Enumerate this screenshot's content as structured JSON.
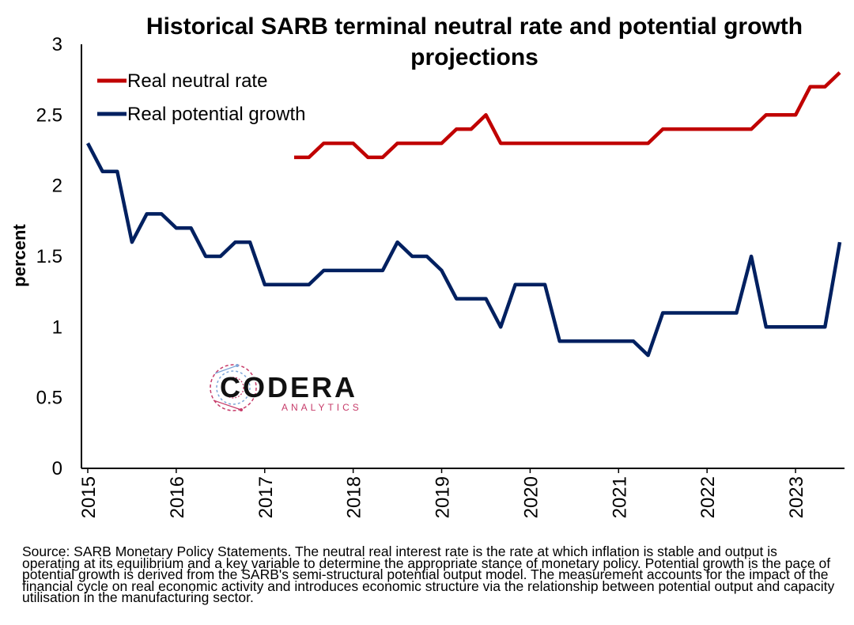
{
  "chart_data": {
    "type": "line",
    "title_line1": "Historical SARB terminal neutral rate and potential growth",
    "title_line2": "projections",
    "ylabel": "percent",
    "xlabel": "",
    "ylim": [
      0,
      3
    ],
    "yticks": [
      "0",
      "0.5",
      "1",
      "1.5",
      "2",
      "2.5",
      "3"
    ],
    "xticks": [
      "2015",
      "2016",
      "2017",
      "2018",
      "2019",
      "2020",
      "2021",
      "2022",
      "2023"
    ],
    "x_range": [
      2015.0,
      2023.5
    ],
    "grid": false,
    "legend_position": "top-left",
    "series": [
      {
        "name": "Real neutral rate",
        "color": "#c00000",
        "x": [
          2017.333,
          2017.5,
          2017.667,
          2017.833,
          2018.0,
          2018.167,
          2018.333,
          2018.5,
          2018.667,
          2018.833,
          2019.0,
          2019.167,
          2019.333,
          2019.5,
          2019.667,
          2019.833,
          2020.0,
          2020.167,
          2020.333,
          2020.5,
          2020.667,
          2020.833,
          2021.0,
          2021.167,
          2021.333,
          2021.5,
          2021.667,
          2021.833,
          2022.0,
          2022.167,
          2022.333,
          2022.5,
          2022.667,
          2022.833,
          2023.0,
          2023.167,
          2023.333,
          2023.5
        ],
        "y": [
          2.2,
          2.2,
          2.3,
          2.3,
          2.3,
          2.2,
          2.2,
          2.3,
          2.3,
          2.3,
          2.3,
          2.4,
          2.4,
          2.5,
          2.3,
          2.3,
          2.3,
          2.3,
          2.3,
          2.3,
          2.3,
          2.3,
          2.3,
          2.3,
          2.3,
          2.4,
          2.4,
          2.4,
          2.4,
          2.4,
          2.4,
          2.4,
          2.5,
          2.5,
          2.5,
          2.7,
          2.7,
          2.8
        ]
      },
      {
        "name": "Real potential growth",
        "color": "#002060",
        "x": [
          2015.0,
          2015.167,
          2015.333,
          2015.5,
          2015.667,
          2015.833,
          2016.0,
          2016.167,
          2016.333,
          2016.5,
          2016.667,
          2016.833,
          2017.0,
          2017.167,
          2017.333,
          2017.5,
          2017.667,
          2017.833,
          2018.0,
          2018.167,
          2018.333,
          2018.5,
          2018.667,
          2018.833,
          2019.0,
          2019.167,
          2019.333,
          2019.5,
          2019.667,
          2019.833,
          2020.0,
          2020.167,
          2020.333,
          2020.5,
          2020.667,
          2020.833,
          2021.0,
          2021.167,
          2021.333,
          2021.5,
          2021.667,
          2021.833,
          2022.0,
          2022.167,
          2022.333,
          2022.5,
          2022.667,
          2022.833,
          2023.0,
          2023.167,
          2023.333,
          2023.5
        ],
        "y": [
          2.3,
          2.1,
          2.1,
          1.6,
          1.8,
          1.8,
          1.7,
          1.7,
          1.5,
          1.5,
          1.6,
          1.6,
          1.3,
          1.3,
          1.3,
          1.3,
          1.4,
          1.4,
          1.4,
          1.4,
          1.4,
          1.6,
          1.5,
          1.5,
          1.4,
          1.2,
          1.2,
          1.2,
          1.0,
          1.3,
          1.3,
          1.3,
          0.9,
          0.9,
          0.9,
          0.9,
          0.9,
          0.9,
          0.8,
          1.1,
          1.1,
          1.1,
          1.1,
          1.1,
          1.1,
          1.5,
          1.0,
          1.0,
          1.0,
          1.0,
          1.0,
          1.6
        ]
      }
    ]
  },
  "logo": {
    "name": "CODERA",
    "subtitle": "ANALYTICS",
    "accent_color": "#c73c6a",
    "icon": "circuit-globe-icon"
  },
  "source_note": "Source: SARB Monetary Policy Statements. The neutral real interest rate is the rate at which inflation is stable and output is operating at its equilibrium and a key variable to determine the appropriate stance of monetary policy. Potential growth is the pace of potential growth is derived from the SARB's semi-structural potential output model. The measurement accounts for the impact of the financial cycle on real economic activity and introduces economic structure via the relationship between potential output and capacity utilisation in the manufacturing sector."
}
